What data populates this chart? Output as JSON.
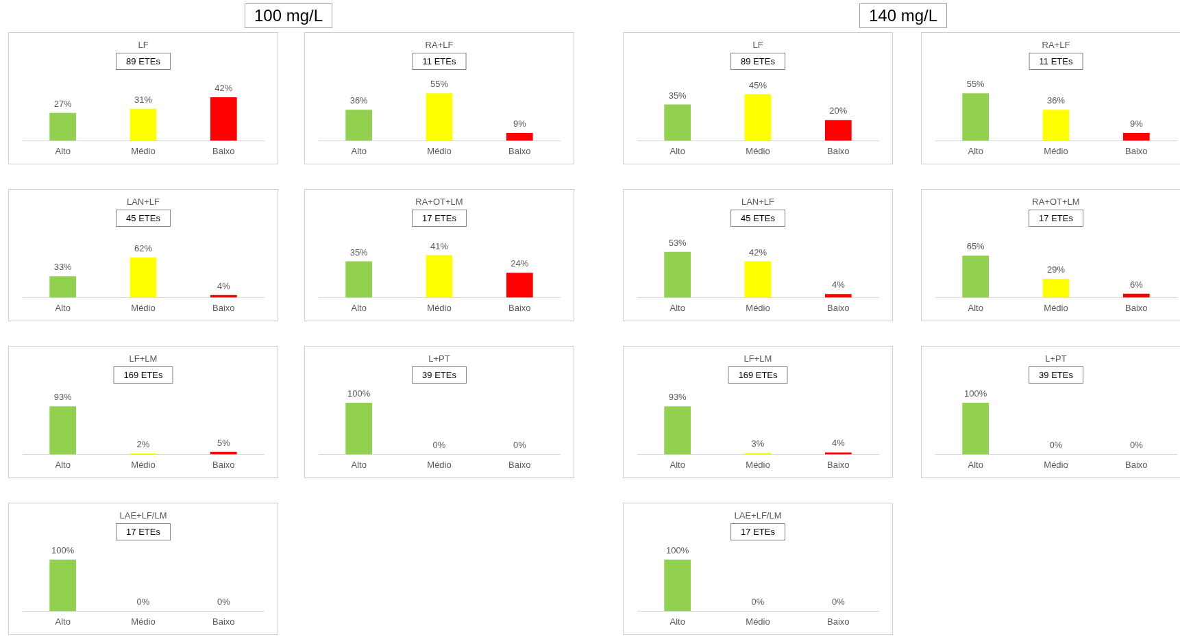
{
  "chart_data": [
    {
      "type": "bar",
      "title": "LF",
      "subtitle": "89 ETEs",
      "annotations": [
        "100 mg/L"
      ],
      "categories": [
        "Alto",
        "Médio",
        "Baixo"
      ],
      "values": [
        27,
        31,
        42
      ],
      "value_labels": [
        "27%",
        "31%",
        "42%"
      ],
      "colors": [
        "#92d050",
        "#ffff00",
        "#ff0000"
      ]
    },
    {
      "type": "bar",
      "title": "RA+LF",
      "subtitle": "11 ETEs",
      "categories": [
        "Alto",
        "Médio",
        "Baixo"
      ],
      "values": [
        36,
        55,
        9
      ],
      "value_labels": [
        "36%",
        "55%",
        "9%"
      ],
      "colors": [
        "#92d050",
        "#ffff00",
        "#ff0000"
      ]
    },
    {
      "type": "bar",
      "title": "LF",
      "subtitle": "89 ETEs",
      "annotations": [
        "140 mg/L"
      ],
      "categories": [
        "Alto",
        "Médio",
        "Baixo"
      ],
      "values": [
        35,
        45,
        20
      ],
      "value_labels": [
        "35%",
        "45%",
        "20%"
      ],
      "colors": [
        "#92d050",
        "#ffff00",
        "#ff0000"
      ]
    },
    {
      "type": "bar",
      "title": "RA+LF",
      "subtitle": "11 ETEs",
      "categories": [
        "Alto",
        "Médio",
        "Baixo"
      ],
      "values": [
        55,
        36,
        9
      ],
      "value_labels": [
        "55%",
        "36%",
        "9%"
      ],
      "colors": [
        "#92d050",
        "#ffff00",
        "#ff0000"
      ]
    },
    {
      "type": "bar",
      "title": "LAN+LF",
      "subtitle": "45 ETEs",
      "categories": [
        "Alto",
        "Médio",
        "Baixo"
      ],
      "values": [
        33,
        62,
        4
      ],
      "value_labels": [
        "33%",
        "62%",
        "4%"
      ],
      "colors": [
        "#92d050",
        "#ffff00",
        "#ff0000"
      ]
    },
    {
      "type": "bar",
      "title": "RA+OT+LM",
      "subtitle": "17 ETEs",
      "categories": [
        "Alto",
        "Médio",
        "Baixo"
      ],
      "values": [
        35,
        41,
        24
      ],
      "value_labels": [
        "35%",
        "41%",
        "24%"
      ],
      "colors": [
        "#92d050",
        "#ffff00",
        "#ff0000"
      ]
    },
    {
      "type": "bar",
      "title": "LAN+LF",
      "subtitle": "45 ETEs",
      "categories": [
        "Alto",
        "Médio",
        "Baixo"
      ],
      "values": [
        53,
        42,
        4
      ],
      "value_labels": [
        "53%",
        "42%",
        "4%"
      ],
      "colors": [
        "#92d050",
        "#ffff00",
        "#ff0000"
      ]
    },
    {
      "type": "bar",
      "title": "RA+OT+LM",
      "subtitle": "17 ETEs",
      "categories": [
        "Alto",
        "Médio",
        "Baixo"
      ],
      "values": [
        65,
        29,
        6
      ],
      "value_labels": [
        "65%",
        "29%",
        "6%"
      ],
      "colors": [
        "#92d050",
        "#ffff00",
        "#ff0000"
      ]
    },
    {
      "type": "bar",
      "title": "LF+LM",
      "subtitle": "169 ETEs",
      "categories": [
        "Alto",
        "Médio",
        "Baixo"
      ],
      "values": [
        93,
        2,
        5
      ],
      "value_labels": [
        "93%",
        "2%",
        "5%"
      ],
      "colors": [
        "#92d050",
        "#ffff00",
        "#ff0000"
      ]
    },
    {
      "type": "bar",
      "title": "L+PT",
      "subtitle": "39 ETEs",
      "categories": [
        "Alto",
        "Médio",
        "Baixo"
      ],
      "values": [
        100,
        0,
        0
      ],
      "value_labels": [
        "100%",
        "0%",
        "0%"
      ],
      "colors": [
        "#92d050",
        "#ffff00",
        "#ff0000"
      ]
    },
    {
      "type": "bar",
      "title": "LF+LM",
      "subtitle": "169 ETEs",
      "categories": [
        "Alto",
        "Médio",
        "Baixo"
      ],
      "values": [
        93,
        3,
        4
      ],
      "value_labels": [
        "93%",
        "3%",
        "4%"
      ],
      "colors": [
        "#92d050",
        "#ffff00",
        "#ff0000"
      ]
    },
    {
      "type": "bar",
      "title": "L+PT",
      "subtitle": "39 ETEs",
      "categories": [
        "Alto",
        "Médio",
        "Baixo"
      ],
      "values": [
        100,
        0,
        0
      ],
      "value_labels": [
        "100%",
        "0%",
        "0%"
      ],
      "colors": [
        "#92d050",
        "#ffff00",
        "#ff0000"
      ]
    },
    {
      "type": "bar",
      "title": "LAE+LF/LM",
      "subtitle": "17 ETEs",
      "categories": [
        "Alto",
        "Médio",
        "Baixo"
      ],
      "values": [
        100,
        0,
        0
      ],
      "value_labels": [
        "100%",
        "0%",
        "0%"
      ],
      "colors": [
        "#92d050",
        "#ffff00",
        "#ff0000"
      ]
    },
    {
      "type": "bar",
      "title": "LAE+LF/LM",
      "subtitle": "17 ETEs",
      "categories": [
        "Alto",
        "Médio",
        "Baixo"
      ],
      "values": [
        100,
        0,
        0
      ],
      "value_labels": [
        "100%",
        "0%",
        "0%"
      ],
      "colors": [
        "#92d050",
        "#ffff00",
        "#ff0000"
      ]
    }
  ]
}
